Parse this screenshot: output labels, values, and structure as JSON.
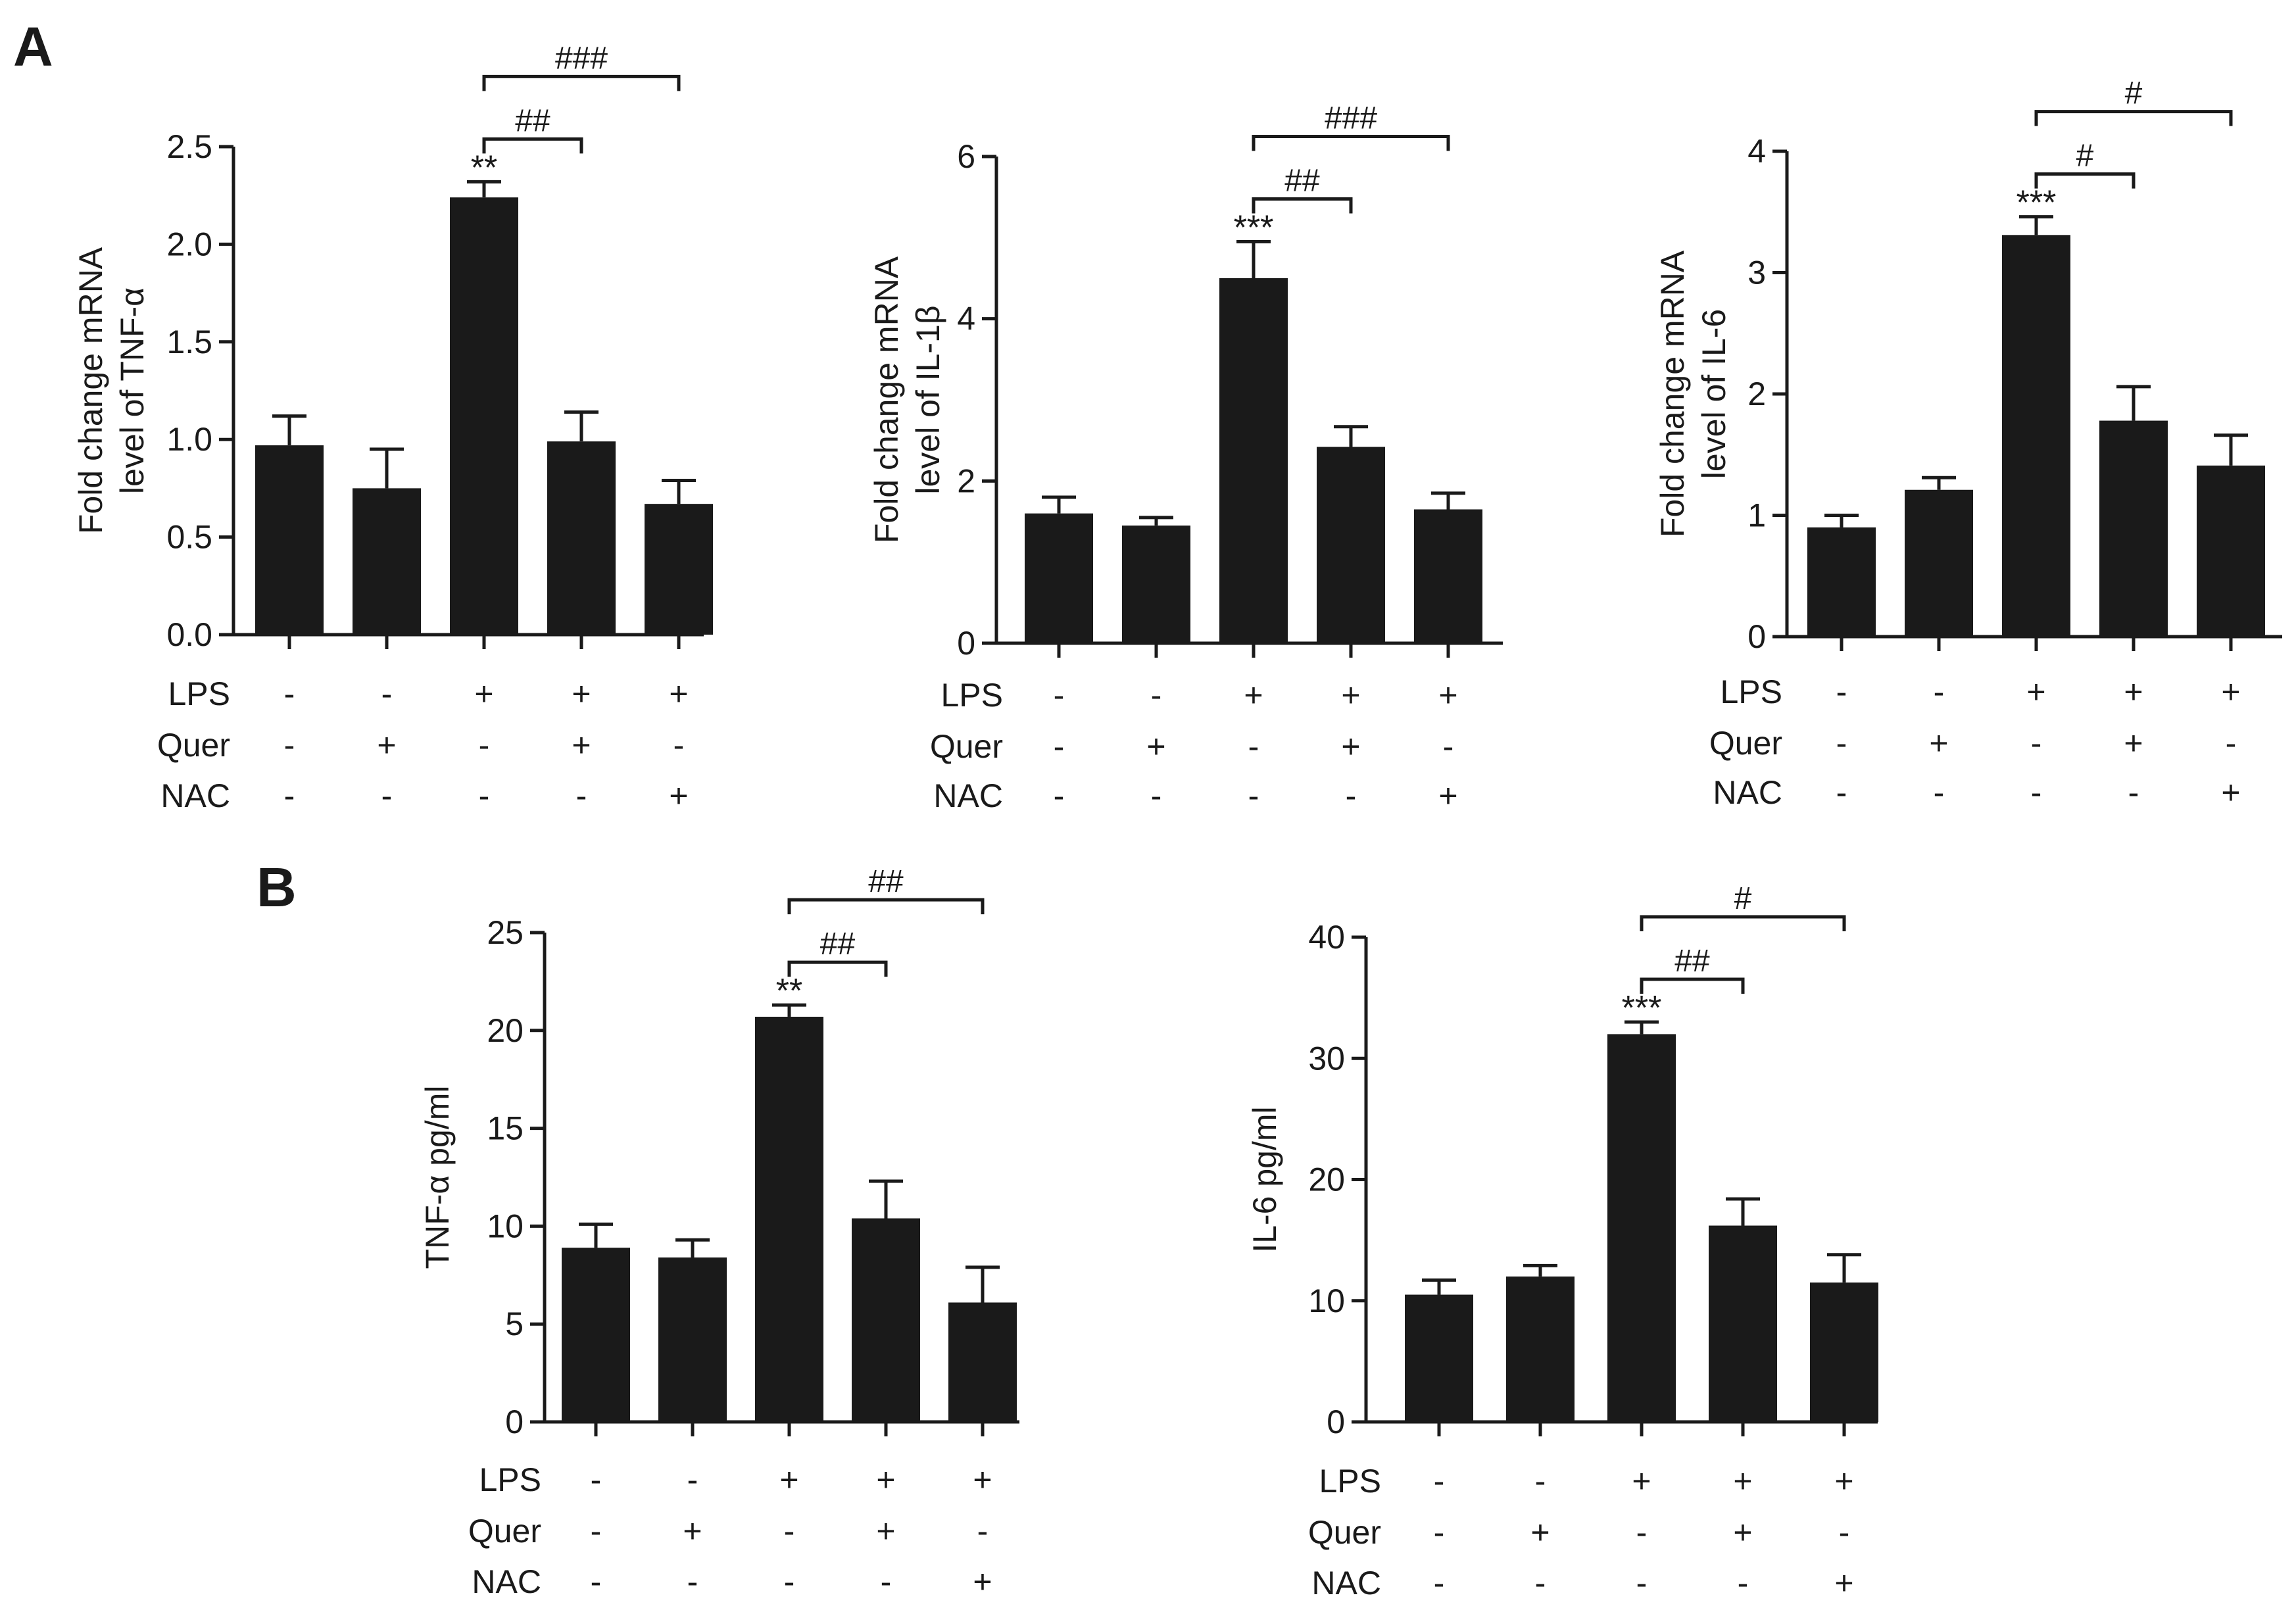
{
  "panels": {
    "a_label": "A",
    "b_label": "B"
  },
  "colors": {
    "bar": "#1a1a1a",
    "axis": "#1a1a1a",
    "background": "#ffffff"
  },
  "chart_data": [
    {
      "id": "a1",
      "panel": "A",
      "type": "bar",
      "ylabel": [
        "Fold change mRNA",
        "level of TNF-α"
      ],
      "ylim": [
        0,
        2.5
      ],
      "yticks": [
        "0.0",
        "0.5",
        "1.0",
        "1.5",
        "2.0",
        "2.5"
      ],
      "ytick_values": [
        0,
        0.5,
        1.0,
        1.5,
        2.0,
        2.5
      ],
      "values": [
        0.97,
        0.75,
        2.24,
        0.99,
        0.67
      ],
      "errors": [
        0.15,
        0.2,
        0.08,
        0.15,
        0.12
      ],
      "bar_labels": [
        "",
        "",
        "**",
        "",
        ""
      ],
      "brackets": [
        {
          "from": 2,
          "to": 3,
          "label": "##"
        },
        {
          "from": 2,
          "to": 4,
          "label": "###"
        }
      ],
      "conditions": [
        {
          "name": "LPS",
          "values": [
            "-",
            "-",
            "+",
            "+",
            "+"
          ]
        },
        {
          "name": "Quer",
          "values": [
            "-",
            "+",
            "-",
            "+",
            "-"
          ]
        },
        {
          "name": "NAC",
          "values": [
            "-",
            "-",
            "-",
            "-",
            "+"
          ]
        }
      ]
    },
    {
      "id": "a2",
      "panel": "A",
      "type": "bar",
      "ylabel": [
        "Fold change mRNA",
        "level of IL-1β"
      ],
      "ylim": [
        0,
        6
      ],
      "yticks": [
        "0",
        "2",
        "4",
        "6"
      ],
      "ytick_values": [
        0,
        2,
        4,
        6
      ],
      "values": [
        1.6,
        1.45,
        4.5,
        2.42,
        1.65
      ],
      "errors": [
        0.2,
        0.1,
        0.45,
        0.25,
        0.2
      ],
      "bar_labels": [
        "",
        "",
        "***",
        "",
        ""
      ],
      "brackets": [
        {
          "from": 2,
          "to": 3,
          "label": "##"
        },
        {
          "from": 2,
          "to": 4,
          "label": "###"
        }
      ],
      "conditions": [
        {
          "name": "LPS",
          "values": [
            "-",
            "-",
            "+",
            "+",
            "+"
          ]
        },
        {
          "name": "Quer",
          "values": [
            "-",
            "+",
            "-",
            "+",
            "-"
          ]
        },
        {
          "name": "NAC",
          "values": [
            "-",
            "-",
            "-",
            "-",
            "+"
          ]
        }
      ]
    },
    {
      "id": "a3",
      "panel": "A",
      "type": "bar",
      "ylabel": [
        "Fold change mRNA",
        "level of IL-6"
      ],
      "ylim": [
        0,
        4
      ],
      "yticks": [
        "0",
        "1",
        "2",
        "3",
        "4"
      ],
      "ytick_values": [
        0,
        1,
        2,
        3,
        4
      ],
      "values": [
        0.9,
        1.21,
        3.31,
        1.78,
        1.41
      ],
      "errors": [
        0.1,
        0.1,
        0.15,
        0.28,
        0.25
      ],
      "bar_labels": [
        "",
        "",
        "***",
        "",
        ""
      ],
      "brackets": [
        {
          "from": 2,
          "to": 3,
          "label": "#"
        },
        {
          "from": 2,
          "to": 4,
          "label": "#"
        }
      ],
      "conditions": [
        {
          "name": "LPS",
          "values": [
            "-",
            "-",
            "+",
            "+",
            "+"
          ]
        },
        {
          "name": "Quer",
          "values": [
            "-",
            "+",
            "-",
            "+",
            "-"
          ]
        },
        {
          "name": "NAC",
          "values": [
            "-",
            "-",
            "-",
            "-",
            "+"
          ]
        }
      ]
    },
    {
      "id": "b1",
      "panel": "B",
      "type": "bar",
      "ylabel": [
        "TNF-α pg/ml"
      ],
      "ylim": [
        0,
        25
      ],
      "yticks": [
        "0",
        "5",
        "10",
        "15",
        "20",
        "25"
      ],
      "ytick_values": [
        0,
        5,
        10,
        15,
        20,
        25
      ],
      "values": [
        8.9,
        8.4,
        20.7,
        10.4,
        6.1
      ],
      "errors": [
        1.2,
        0.9,
        0.6,
        1.9,
        1.8
      ],
      "bar_labels": [
        "",
        "",
        "**",
        "",
        ""
      ],
      "brackets": [
        {
          "from": 2,
          "to": 3,
          "label": "##"
        },
        {
          "from": 2,
          "to": 4,
          "label": "##"
        }
      ],
      "conditions": [
        {
          "name": "LPS",
          "values": [
            "-",
            "-",
            "+",
            "+",
            "+"
          ]
        },
        {
          "name": "Quer",
          "values": [
            "-",
            "+",
            "-",
            "+",
            "-"
          ]
        },
        {
          "name": "NAC",
          "values": [
            "-",
            "-",
            "-",
            "-",
            "+"
          ]
        }
      ]
    },
    {
      "id": "b2",
      "panel": "B",
      "type": "bar",
      "ylabel": [
        "IL-6 pg/ml"
      ],
      "ylim": [
        0,
        40
      ],
      "yticks": [
        "0",
        "10",
        "20",
        "30",
        "40"
      ],
      "ytick_values": [
        0,
        10,
        20,
        30,
        40
      ],
      "values": [
        10.5,
        12.0,
        32.0,
        16.2,
        11.5
      ],
      "errors": [
        1.2,
        0.9,
        1.0,
        2.2,
        2.3
      ],
      "bar_labels": [
        "",
        "",
        "***",
        "",
        ""
      ],
      "brackets": [
        {
          "from": 2,
          "to": 3,
          "label": "##"
        },
        {
          "from": 2,
          "to": 4,
          "label": "#"
        }
      ],
      "conditions": [
        {
          "name": "LPS",
          "values": [
            "-",
            "-",
            "+",
            "+",
            "+"
          ]
        },
        {
          "name": "Quer",
          "values": [
            "-",
            "+",
            "-",
            "+",
            "-"
          ]
        },
        {
          "name": "NAC",
          "values": [
            "-",
            "-",
            "-",
            "-",
            "+"
          ]
        }
      ]
    }
  ]
}
